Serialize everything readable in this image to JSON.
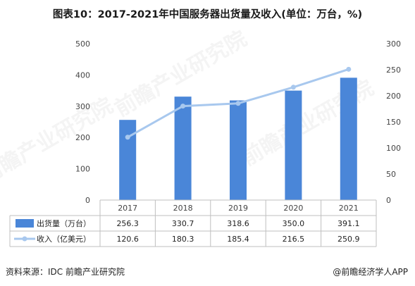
{
  "title": "图表10：2017-2021年中国服务器出货量及收入(单位：万台，%)",
  "source": "资料来源：IDC 前瞻产业研究院",
  "credit": "@前瞻经济学人APP",
  "watermark": "前瞻产业研究院",
  "colors": {
    "bar": "#4a86d8",
    "line": "#a8c8ee",
    "grid": "#d9d9d9",
    "axis": "#bfbfbf",
    "text": "#444444"
  },
  "chart_data": {
    "type": "bar+line",
    "categories": [
      "2017",
      "2018",
      "2019",
      "2020",
      "2021"
    ],
    "series": [
      {
        "name": "出货量（万台）",
        "type": "bar",
        "axis": "left",
        "values": [
          256.3,
          330.7,
          318.6,
          350.0,
          391.1
        ]
      },
      {
        "name": "收入（亿美元）",
        "type": "line",
        "axis": "right",
        "values": [
          120.6,
          180.3,
          185.4,
          216.5,
          250.9
        ]
      }
    ],
    "y_left": {
      "min": 0,
      "max": 500,
      "ticks": [
        0,
        100,
        200,
        300,
        400,
        500
      ]
    },
    "y_right": {
      "min": 0,
      "max": 300,
      "ticks": [
        0,
        50,
        100,
        150,
        200,
        250,
        300
      ]
    },
    "grid": false,
    "legend": "data-table"
  }
}
